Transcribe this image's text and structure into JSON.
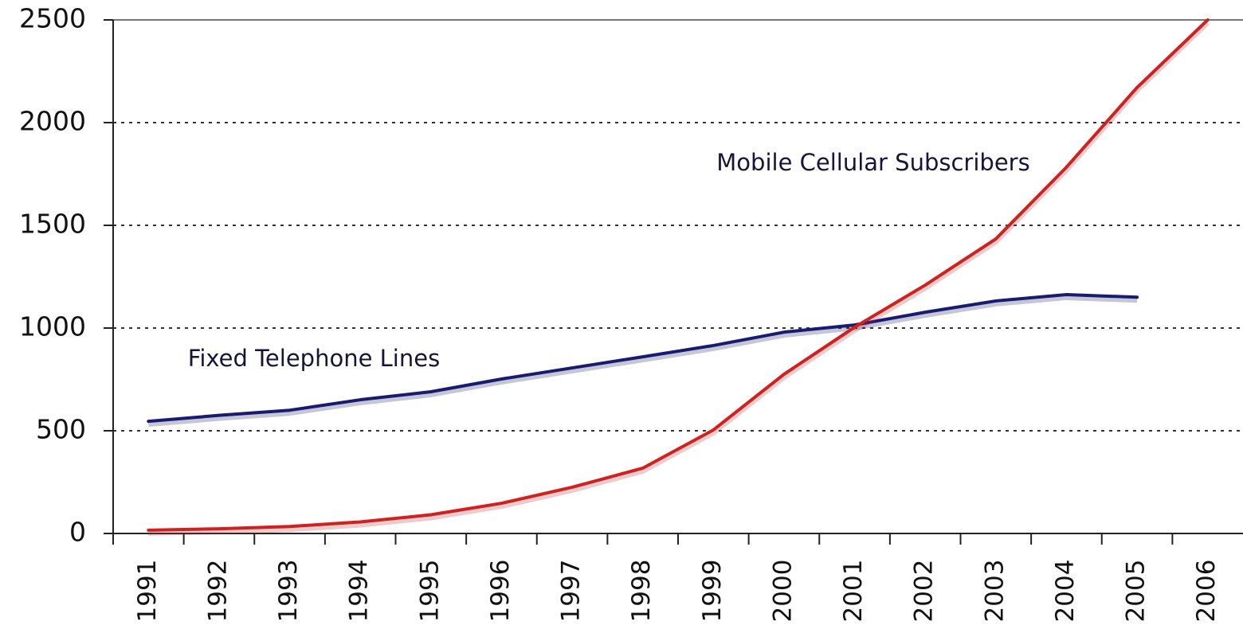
{
  "chart_data": {
    "type": "line",
    "categories": [
      "1991",
      "1992",
      "1993",
      "1994",
      "1995",
      "1996",
      "1997",
      "1998",
      "1999",
      "2000",
      "2001",
      "2002",
      "2003",
      "2004",
      "2005",
      "2006"
    ],
    "series": [
      {
        "name": "Fixed Telephone Lines",
        "color": "#1a1a6e",
        "values": [
          546,
          575,
          600,
          651,
          690,
          752,
          806,
          860,
          915,
          980,
          1015,
          1077,
          1132,
          1163,
          1150,
          null
        ]
      },
      {
        "name": "Mobile Cellular Subscribers",
        "color": "#cc2222",
        "values": [
          16,
          23,
          34,
          56,
          91,
          147,
          225,
          318,
          504,
          775,
          1004,
          1209,
          1434,
          1783,
          2171,
          2500
        ]
      }
    ],
    "ylim": [
      0,
      2500
    ],
    "yticks": [
      0,
      500,
      1000,
      1500,
      2000,
      2500
    ],
    "grid": true
  }
}
